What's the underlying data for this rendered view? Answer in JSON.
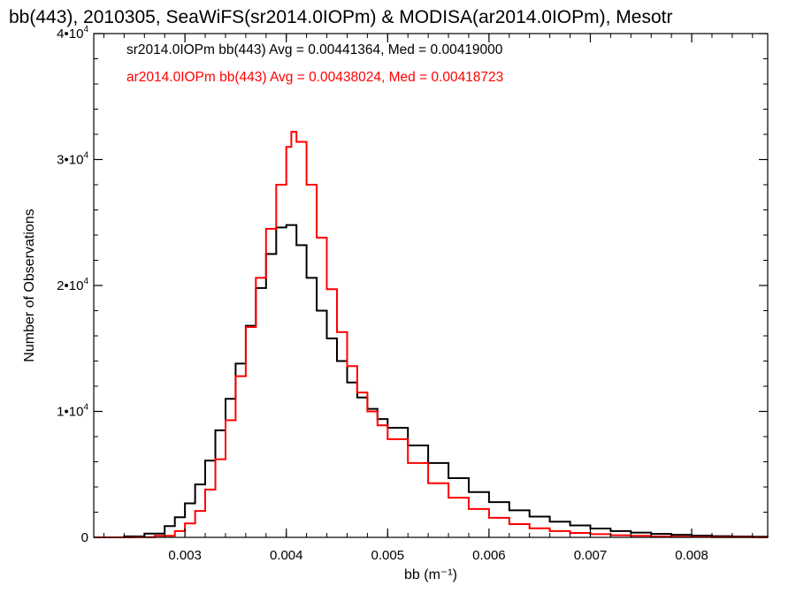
{
  "chart_data": {
    "type": "line",
    "title": "bb(443), 2010305, SeaWiFS(sr2014.0IOPm) & MODISA(ar2014.0IOPm), Mesotr",
    "xlabel": "bb (m⁻¹)",
    "ylabel": "Number of Observations",
    "xlim": [
      0.0021,
      0.00875
    ],
    "ylim": [
      0,
      40000
    ],
    "x_ticks": [
      0.003,
      0.004,
      0.005,
      0.006,
      0.007,
      0.008
    ],
    "x_tick_labels": [
      "0.003",
      "0.004",
      "0.005",
      "0.006",
      "0.007",
      "0.008"
    ],
    "y_ticks": [
      0,
      10000,
      20000,
      30000,
      40000
    ],
    "y_tick_labels": [
      {
        "base": "0",
        "exp": ""
      },
      {
        "base": "1•10",
        "exp": "4"
      },
      {
        "base": "2•10",
        "exp": "4"
      },
      {
        "base": "3•10",
        "exp": "4"
      },
      {
        "base": "4•10",
        "exp": "4"
      }
    ],
    "grid": false,
    "legend_position": "top-left",
    "series": [
      {
        "name": "sr2014.0IOPm bb(443)",
        "label": "sr2014.0IOPm bb(443) Avg = 0.00441364, Med = 0.00419000",
        "color": "#000000",
        "x": [
          0.0021,
          0.0024,
          0.0026,
          0.0028,
          0.0029,
          0.003,
          0.0031,
          0.0032,
          0.0033,
          0.0034,
          0.0035,
          0.0036,
          0.0037,
          0.0038,
          0.0039,
          0.004,
          0.0041,
          0.0042,
          0.0043,
          0.0044,
          0.0045,
          0.0046,
          0.0047,
          0.0048,
          0.0049,
          0.005,
          0.0052,
          0.0054,
          0.0056,
          0.0058,
          0.006,
          0.0062,
          0.0064,
          0.0066,
          0.0068,
          0.007,
          0.0072,
          0.0074,
          0.0076,
          0.0078,
          0.008,
          0.0082,
          0.0084,
          0.0086,
          0.00875
        ],
        "y": [
          0,
          80,
          300,
          900,
          1600,
          2700,
          4200,
          6100,
          8500,
          11000,
          13800,
          16800,
          19800,
          22500,
          24600,
          24800,
          23200,
          20600,
          18000,
          15800,
          14000,
          12300,
          11100,
          10200,
          9400,
          8700,
          7300,
          5900,
          4700,
          3600,
          2800,
          2150,
          1650,
          1250,
          950,
          700,
          500,
          380,
          280,
          200,
          140,
          100,
          70,
          50,
          40
        ]
      },
      {
        "name": "ar2014.0IOPm bb(443)",
        "label": "ar2014.0IOPm bb(443) Avg = 0.00438024, Med = 0.00418723",
        "color": "#ff0000",
        "x": [
          0.0021,
          0.0025,
          0.0027,
          0.0029,
          0.003,
          0.0031,
          0.0032,
          0.0033,
          0.0034,
          0.0035,
          0.0036,
          0.0037,
          0.0038,
          0.0039,
          0.004,
          0.00405,
          0.0041,
          0.0042,
          0.0043,
          0.0044,
          0.0045,
          0.0046,
          0.0047,
          0.0048,
          0.0049,
          0.005,
          0.0052,
          0.0054,
          0.0056,
          0.0058,
          0.006,
          0.0062,
          0.0064,
          0.0066,
          0.0068,
          0.007,
          0.0072,
          0.0074,
          0.0076,
          0.0078,
          0.008,
          0.0082,
          0.0084,
          0.0086,
          0.00875
        ],
        "y": [
          0,
          20,
          120,
          500,
          1100,
          2100,
          3800,
          6200,
          9300,
          12800,
          16700,
          20600,
          24500,
          28000,
          31000,
          32200,
          31400,
          28000,
          23800,
          19700,
          16300,
          13600,
          11500,
          10000,
          8900,
          7800,
          5900,
          4300,
          3150,
          2250,
          1550,
          1050,
          720,
          500,
          350,
          250,
          170,
          120,
          80,
          50,
          35,
          20,
          12,
          8,
          5
        ]
      }
    ]
  }
}
